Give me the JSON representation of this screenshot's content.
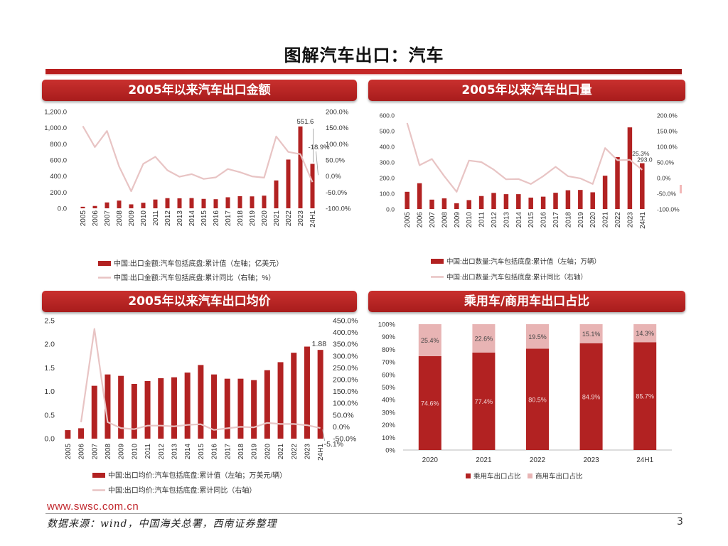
{
  "page": {
    "title": "图解汽车出口：汽车",
    "footer_url": "www.swsc.com.cn",
    "footer_source": "数据来源：wind，中国海关总署，西南证券整理",
    "page_number": "3"
  },
  "colors": {
    "bar": "#b22222",
    "line": "#e8c4c4",
    "header": "#b52424",
    "ctype_commercial": "#e8b4b4"
  },
  "chart_data": [
    {
      "id": "value",
      "type": "bar+line",
      "title": "2005年以来汽车出口金额",
      "categories": [
        "2005",
        "2006",
        "2007",
        "2008",
        "2009",
        "2010",
        "2011",
        "2012",
        "2013",
        "2014",
        "2015",
        "2016",
        "2017",
        "2018",
        "2019",
        "2020",
        "2021",
        "2022",
        "2023",
        "24H1"
      ],
      "series": [
        {
          "name": "中国:出口金额:汽车包括底盘:累计值（左轴；亿美元）",
          "type": "bar",
          "axis": "left",
          "values": [
            19,
            29,
            73,
            96,
            49,
            69,
            109,
            126,
            124,
            127,
            117,
            113,
            137,
            151,
            148,
            157,
            346,
            605,
            1016,
            551.6
          ]
        },
        {
          "name": "中国:出口金额:汽车包括底盘:累计同比（右轴；%）",
          "type": "line",
          "axis": "right",
          "values": [
            155,
            90,
            140,
            30,
            -47,
            38,
            60,
            18,
            -2,
            6,
            -9,
            -4,
            22,
            12,
            -1,
            -5,
            123,
            75,
            68,
            -18.9
          ]
        }
      ],
      "left_axis": {
        "min": 0,
        "max": 1200,
        "ticks": [
          "0.0",
          "200.0",
          "400.0",
          "600.0",
          "800.0",
          "1,000.0",
          "1,200.0"
        ]
      },
      "right_axis": {
        "min": -100,
        "max": 200,
        "ticks": [
          "-100.0%",
          "-50.0%",
          "0.0%",
          "50.0%",
          "100.0%",
          "150.0%",
          "200.0%"
        ]
      },
      "annotations": [
        {
          "text": "551.6"
        },
        {
          "text": "-18.9%"
        }
      ]
    },
    {
      "id": "volume",
      "type": "bar+line",
      "title": "2005年以来汽车出口量",
      "categories": [
        "2005",
        "2006",
        "2007",
        "2008",
        "2009",
        "2010",
        "2011",
        "2012",
        "2013",
        "2014",
        "2015",
        "2016",
        "2017",
        "2018",
        "2019",
        "2020",
        "2021",
        "2022",
        "2023",
        "24H1"
      ],
      "series": [
        {
          "name": "中国:出口数量:汽车包括底盘:累计值（左轴；万辆）",
          "type": "bar",
          "axis": "left",
          "values": [
            110,
            165,
            60,
            68,
            37,
            57,
            83,
            103,
            95,
            95,
            73,
            79,
            104,
            120,
            122,
            107,
            213,
            332,
            522,
            293
          ]
        },
        {
          "name": "中国:出口数量:汽车包括底盘:累计同比（右轴）",
          "type": "line",
          "axis": "right",
          "values": [
            175,
            40,
            60,
            5,
            -45,
            55,
            50,
            26,
            -5,
            -4,
            -20,
            5,
            35,
            5,
            -2,
            -20,
            95,
            56,
            57,
            25.3
          ]
        }
      ],
      "left_axis": {
        "min": 0,
        "max": 600,
        "ticks": [
          "0.0",
          "100.0",
          "200.0",
          "300.0",
          "400.0",
          "500.0",
          "600.0"
        ]
      },
      "right_axis": {
        "min": -100,
        "max": 200,
        "ticks": [
          "-100.0%",
          "-50.0%",
          "0.0%",
          "50.0%",
          "100.0%",
          "150.0%",
          "200.0%"
        ]
      },
      "annotations": [
        {
          "text": "25.3%"
        },
        {
          "text": "293.0"
        }
      ]
    },
    {
      "id": "price",
      "type": "bar+line",
      "title": "2005年以来汽车出口均价",
      "categories": [
        "2005",
        "2006",
        "2007",
        "2008",
        "2009",
        "2010",
        "2011",
        "2012",
        "2013",
        "2014",
        "2015",
        "2016",
        "2017",
        "2018",
        "2019",
        "2020",
        "2021",
        "2022",
        "2023",
        "24H1"
      ],
      "series": [
        {
          "name": "中国:出口均价:汽车包括底盘:累计值（左轴；万美元/辆）",
          "type": "bar",
          "axis": "left",
          "values": [
            0.18,
            0.22,
            1.12,
            1.36,
            1.33,
            1.16,
            1.22,
            1.28,
            1.3,
            1.4,
            1.56,
            1.36,
            1.27,
            1.27,
            1.24,
            1.45,
            1.62,
            1.82,
            1.95,
            1.88
          ]
        },
        {
          "name": "中国:出口均价:汽车包括底盘:累计同比（右轴）",
          "type": "line",
          "axis": "right",
          "values": [
            null,
            20,
            415,
            20,
            -5,
            -10,
            5,
            5,
            2,
            8,
            11,
            -13,
            -6,
            0,
            -2,
            17,
            12,
            12,
            7,
            -5.1
          ]
        }
      ],
      "left_axis": {
        "min": 0,
        "max": 2.5,
        "ticks": [
          "0.0",
          "0.5",
          "1.0",
          "1.5",
          "2.0",
          "2.5"
        ]
      },
      "right_axis": {
        "min": -50,
        "max": 450,
        "ticks": [
          "-50.0%",
          "0.0%",
          "50.0%",
          "100.0%",
          "150.0%",
          "200.0%",
          "250.0%",
          "300.0%",
          "350.0%",
          "400.0%",
          "450.0%"
        ]
      },
      "annotations": [
        {
          "text": "1.88"
        },
        {
          "text": "-5.1%"
        }
      ]
    },
    {
      "id": "mix",
      "type": "stacked-bar-100",
      "title": "乘用车/商用车出口占比",
      "categories": [
        "2020",
        "2021",
        "2022",
        "2023",
        "24H1"
      ],
      "series": [
        {
          "name": "乘用车出口占比",
          "values": [
            74.6,
            77.4,
            80.5,
            84.9,
            85.7
          ],
          "labels": [
            "74.6%",
            "77.4%",
            "80.5%",
            "84.9%",
            "85.7%"
          ]
        },
        {
          "name": "商用车出口占比",
          "values": [
            25.4,
            22.6,
            19.5,
            15.1,
            14.3
          ],
          "labels": [
            "25.4%",
            "22.6%",
            "19.5%",
            "15.1%",
            "14.3%"
          ]
        }
      ],
      "y_axis": {
        "min": 0,
        "max": 100,
        "ticks": [
          "0%",
          "10%",
          "20%",
          "30%",
          "40%",
          "50%",
          "60%",
          "70%",
          "80%",
          "90%",
          "100%"
        ]
      }
    }
  ]
}
